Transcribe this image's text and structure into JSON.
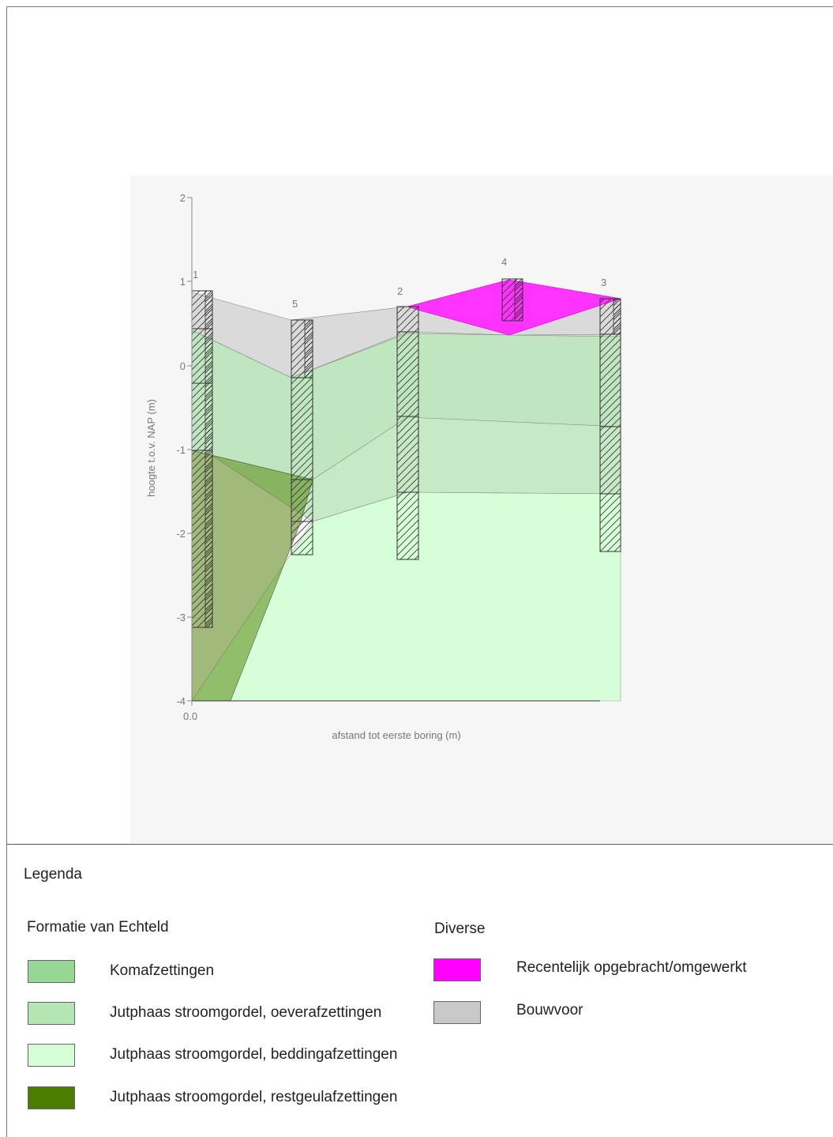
{
  "chart": {
    "ylabel": "hoogte t.o.v. NAP (m)",
    "xlabel": "afstand tot eerste boring (m)",
    "x_tick_label": "0.0",
    "y_tick_labels": [
      "2",
      "1",
      "0",
      "-1",
      "-2",
      "-3",
      "-4"
    ],
    "boring_labels": [
      "1",
      "5",
      "2",
      "4",
      "3"
    ]
  },
  "chart_data": {
    "type": "cross-section",
    "xlabel": "afstand tot eerste boring (m)",
    "ylabel": "hoogte t.o.v. NAP (m)",
    "ylim": [
      -4,
      2
    ],
    "y_ticks": [
      2,
      1,
      0,
      -1,
      -2,
      -3,
      -4
    ],
    "x_ticks": [
      0.0
    ],
    "borings": [
      {
        "id": "1",
        "top": 0.88,
        "bottom": -3.1
      },
      {
        "id": "5",
        "top": 0.55,
        "bottom": -2.25
      },
      {
        "id": "2",
        "top": 0.7,
        "bottom": -2.3
      },
      {
        "id": "4",
        "top": 1.02,
        "bottom": 0.52
      },
      {
        "id": "3",
        "top": 0.79,
        "bottom": -2.2
      }
    ],
    "units": [
      {
        "name": "Recentelijk opgebracht/omgewerkt",
        "color": "#ff00ff"
      },
      {
        "name": "Bouwvoor",
        "color": "#c8c8c8"
      },
      {
        "name": "Komafzettingen",
        "color": "#96d796"
      },
      {
        "name": "Jutphaas stroomgordel, oeverafzettingen",
        "color": "#b4e6b4"
      },
      {
        "name": "Jutphaas stroomgordel, beddingafzettingen",
        "color": "#d7ffd7"
      },
      {
        "name": "Jutphaas stroomgordel, restgeulafzettingen",
        "color": "#4b7d00"
      }
    ]
  },
  "legend": {
    "title": "Legenda",
    "groups": [
      {
        "title": "Formatie van Echteld",
        "items": [
          {
            "label": "Komafzettingen",
            "color": "#96d796"
          },
          {
            "label": "Jutphaas stroomgordel, oeverafzettingen",
            "color": "#b4e6b4"
          },
          {
            "label": "Jutphaas stroomgordel, beddingafzettingen",
            "color": "#d7ffd7"
          },
          {
            "label": "Jutphaas stroomgordel, restgeulafzettingen",
            "color": "#4b7d00"
          }
        ]
      },
      {
        "title": "Diverse",
        "items": [
          {
            "label": "Recentelijk opgebracht/omgewerkt",
            "color": "#ff00ff"
          },
          {
            "label": "Bouwvoor",
            "color": "#c8c8c8"
          }
        ]
      }
    ]
  }
}
